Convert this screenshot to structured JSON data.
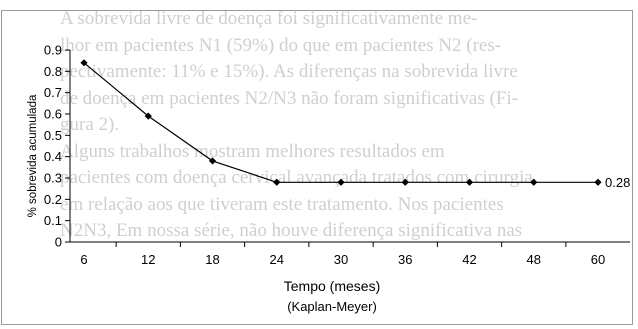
{
  "background_text": {
    "lines": [
      "A sobrevida livre de doença foi significativamente me-",
      "lhor em pacientes N1 (59%) do que em pacientes N2 (res-",
      "pectivamente: 11% e 15%). As diferenças na sobrevida livre",
      "de doença em pacientes N2/N3 não foram significativas (Fi-",
      "gura 2).",
      "Alguns trabalhos mostram melhores resultados em",
      "pacientes com doença cervical avançada tratados com cirurgia",
      "em relação aos que tiveram este tratamento. Nos pacientes",
      "N2N3, Em nossa série, não houve diferença significativa nas"
    ]
  },
  "chart_data": {
    "type": "line",
    "title": "",
    "xlabel": "Tempo (meses)",
    "xlabel_sub": "(Kaplan-Meyer)",
    "ylabel": "% sobrevida acumulada",
    "x": [
      6,
      12,
      18,
      24,
      30,
      36,
      42,
      48,
      60
    ],
    "x_ticks": [
      "6",
      "12",
      "18",
      "24",
      "30",
      "36",
      "42",
      "48",
      "60"
    ],
    "y": [
      0.84,
      0.59,
      0.38,
      0.28,
      0.28,
      0.28,
      0.28,
      0.28,
      0.28
    ],
    "ylim": [
      0,
      0.9
    ],
    "y_ticks": [
      "0",
      "0.1",
      "0.2",
      "0.3",
      "0.4",
      "0.5",
      "0.6",
      "0.7",
      "0.8",
      "0.9"
    ],
    "y_tick_values": [
      0,
      0.1,
      0.2,
      0.3,
      0.4,
      0.5,
      0.6,
      0.7,
      0.8,
      0.9
    ],
    "end_label": "0.28",
    "grid": false,
    "legend": "none",
    "line_color": "#000000"
  }
}
